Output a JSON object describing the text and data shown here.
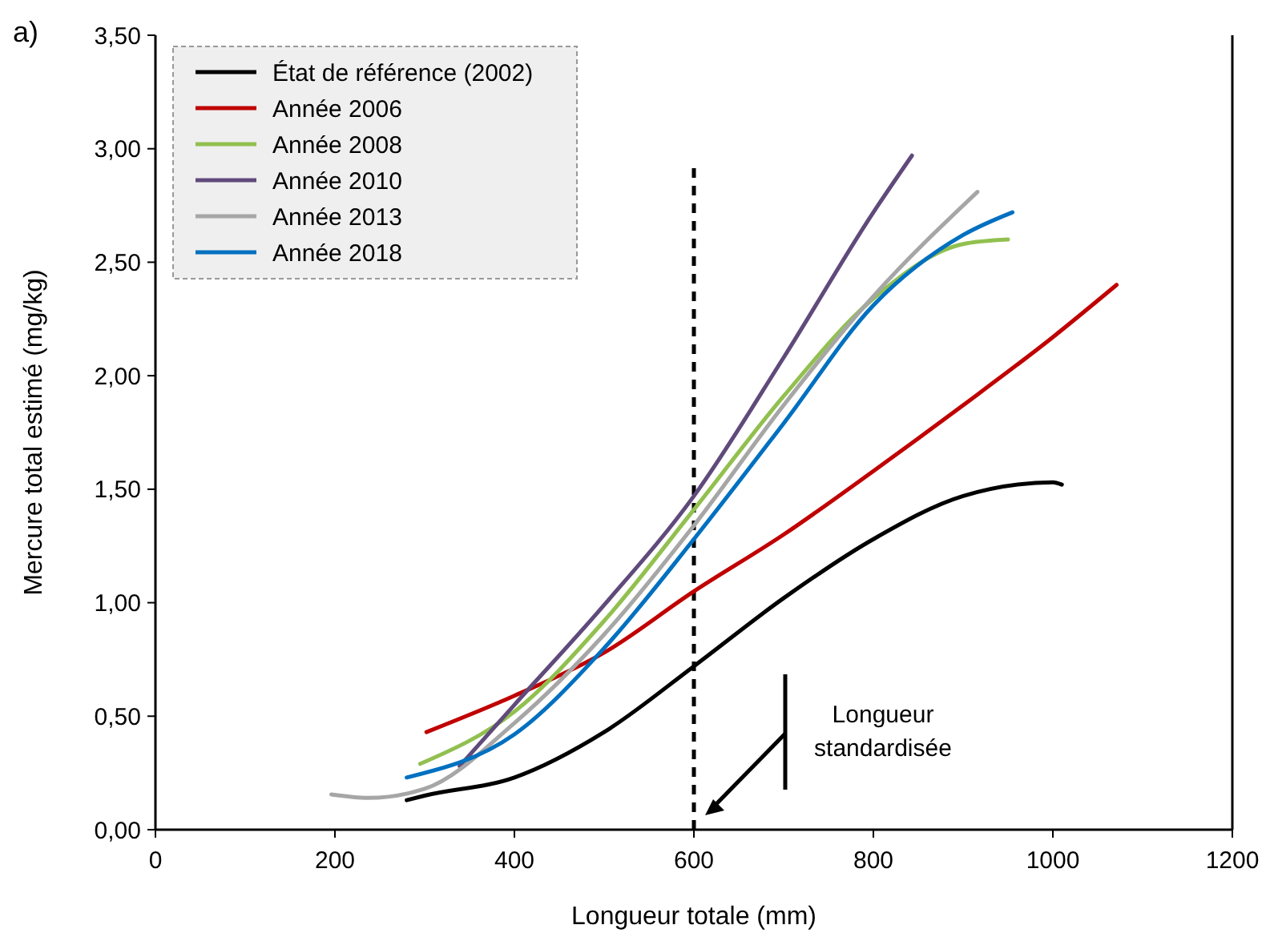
{
  "chart_data": {
    "type": "line",
    "xlabel": "Longueur totale (mm)",
    "ylabel": "Mercure total estimé (mg/kg)",
    "xlim": [
      0,
      1200
    ],
    "xticks": [
      0,
      200,
      400,
      600,
      800,
      1000,
      1200
    ],
    "ylim": [
      0,
      3.5
    ],
    "yticks": [
      {
        "value": 0,
        "label": "0,00"
      },
      {
        "value": 0.5,
        "label": "0,50"
      },
      {
        "value": 1,
        "label": "1,00"
      },
      {
        "value": 1.5,
        "label": "1,50"
      },
      {
        "value": 2,
        "label": "2,00"
      },
      {
        "value": 2.5,
        "label": "2,50"
      },
      {
        "value": 3,
        "label": "3,00"
      },
      {
        "value": 3.5,
        "label": "3,50"
      }
    ],
    "grid": false,
    "legend": "top left",
    "line_style": "solid",
    "marker": "none",
    "series": [
      {
        "name": "État de référence (2002)",
        "color": "#000000",
        "x": [
          280,
          300,
          400,
          500,
          600,
          700,
          800,
          900,
          1000,
          1010
        ],
        "values": [
          0.13,
          0.15,
          0.23,
          0.43,
          0.72,
          1.02,
          1.28,
          1.47,
          1.53,
          1.52
        ]
      },
      {
        "name": "Année 2006",
        "color": "#c00000",
        "x": [
          302,
          400,
          500,
          600,
          700,
          800,
          900,
          1000,
          1071
        ],
        "values": [
          0.43,
          0.59,
          0.78,
          1.05,
          1.3,
          1.58,
          1.87,
          2.17,
          2.4
        ]
      },
      {
        "name": "Année 2008",
        "color": "#92c050",
        "x": [
          295,
          400,
          500,
          600,
          700,
          800,
          900,
          950
        ],
        "values": [
          0.29,
          0.52,
          0.92,
          1.41,
          1.91,
          2.34,
          2.58,
          2.6
        ]
      },
      {
        "name": "Année 2010",
        "color": "#604a7b",
        "x": [
          339,
          400,
          500,
          600,
          700,
          800,
          843
        ],
        "values": [
          0.28,
          0.55,
          0.99,
          1.47,
          2.08,
          2.72,
          2.97
        ]
      },
      {
        "name": "Année 2013",
        "color": "#a6a6a6",
        "x": [
          196,
          237,
          300,
          400,
          500,
          600,
          700,
          800,
          916
        ],
        "values": [
          0.155,
          0.14,
          0.18,
          0.47,
          0.86,
          1.34,
          1.87,
          2.35,
          2.81
        ]
      },
      {
        "name": "Année 2018",
        "color": "#0070c0",
        "x": [
          280,
          400,
          500,
          600,
          700,
          800,
          900,
          955
        ],
        "values": [
          0.23,
          0.42,
          0.8,
          1.28,
          1.79,
          2.31,
          2.62,
          2.72
        ]
      }
    ],
    "ref_lines": [
      {
        "axis": "x",
        "value": 600,
        "color": "#000000",
        "line_style": "dashed"
      }
    ],
    "annotations": [
      "a)",
      "Longueur standardisée"
    ]
  }
}
